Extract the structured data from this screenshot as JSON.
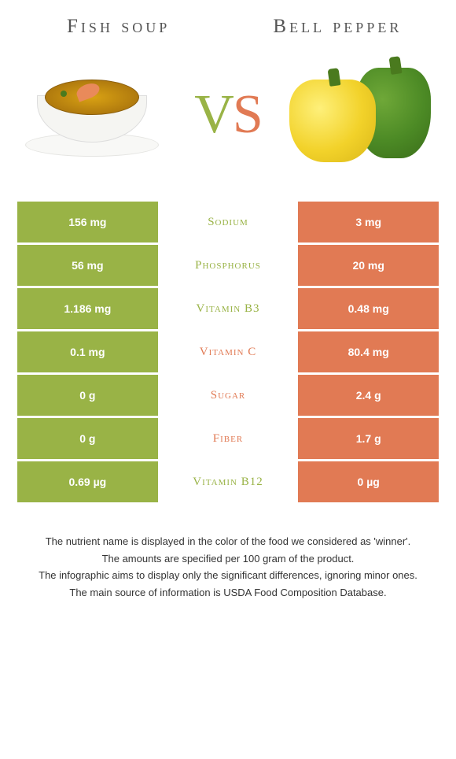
{
  "titles": {
    "left": "Fish soup",
    "right": "Bell pepper"
  },
  "vs": {
    "v": "V",
    "s": "S"
  },
  "colors": {
    "left_accent": "#99b346",
    "right_accent": "#e17a54",
    "background": "#ffffff",
    "text": "#333333"
  },
  "rows": [
    {
      "left": "156 mg",
      "label": "Sodium",
      "right": "3 mg",
      "winner": "left"
    },
    {
      "left": "56 mg",
      "label": "Phosphorus",
      "right": "20 mg",
      "winner": "left"
    },
    {
      "left": "1.186 mg",
      "label": "Vitamin B3",
      "right": "0.48 mg",
      "winner": "left"
    },
    {
      "left": "0.1 mg",
      "label": "Vitamin C",
      "right": "80.4 mg",
      "winner": "right"
    },
    {
      "left": "0 g",
      "label": "Sugar",
      "right": "2.4 g",
      "winner": "right"
    },
    {
      "left": "0 g",
      "label": "Fiber",
      "right": "1.7 g",
      "winner": "right"
    },
    {
      "left": "0.69 µg",
      "label": "Vitamin B12",
      "right": "0 µg",
      "winner": "left"
    }
  ],
  "footer": [
    "The nutrient name is displayed in the color of the food we considered as 'winner'.",
    "The amounts are specified per 100 gram of the product.",
    "The infographic aims to display only the significant differences, ignoring minor ones.",
    "The main source of information is USDA Food Composition Database."
  ]
}
